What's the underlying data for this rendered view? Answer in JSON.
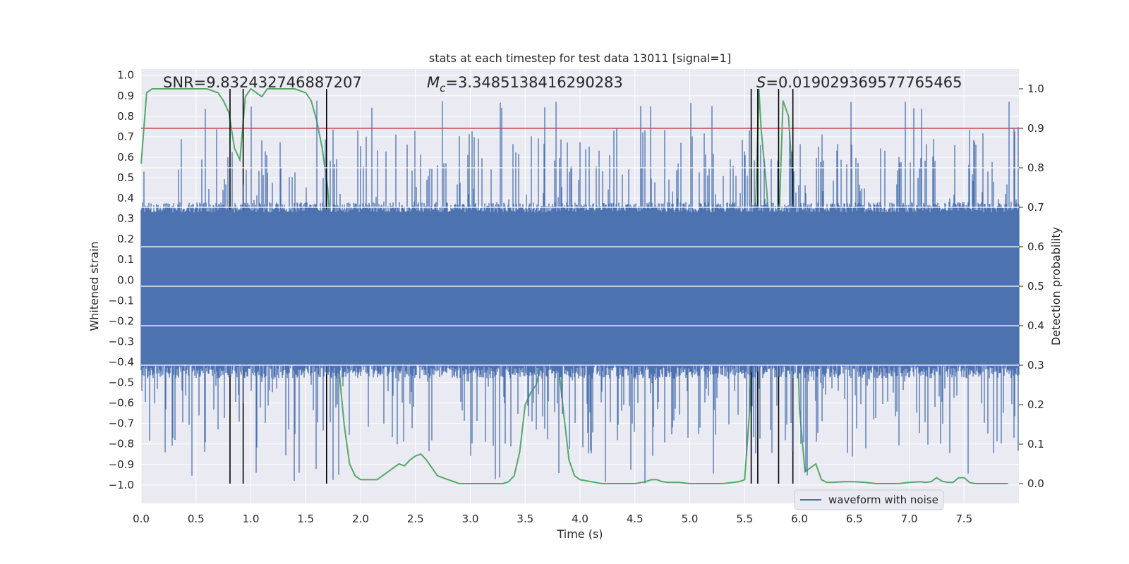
{
  "chart_data": {
    "type": "line",
    "title": "stats at each timestep for test data 13011 [signal=1]",
    "xlabel": "Time (s)",
    "ylabel": "Whitened strain",
    "ylabel_right": "Detection probability",
    "xlim": [
      0.0,
      8.0
    ],
    "ylim": [
      -1.09,
      1.03
    ],
    "ylim_right": [
      -0.05,
      1.05
    ],
    "xticks": [
      "0.0",
      "0.5",
      "1.0",
      "1.5",
      "2.0",
      "2.5",
      "3.0",
      "3.5",
      "4.0",
      "4.5",
      "5.0",
      "5.5",
      "6.0",
      "6.5",
      "7.0",
      "7.5"
    ],
    "yticks": [
      "1.0",
      "0.9",
      "0.8",
      "0.7",
      "0.6",
      "0.5",
      "0.4",
      "0.3",
      "0.2",
      "0.1",
      "0.0",
      "−0.1",
      "−0.2",
      "−0.3",
      "−0.4",
      "−0.5",
      "−0.6",
      "−0.7",
      "−0.8",
      "−0.9",
      "−1.0"
    ],
    "yticks_right": [
      "1.0",
      "0.9",
      "0.8",
      "0.7",
      "0.6",
      "0.5",
      "0.4",
      "0.3",
      "0.2",
      "0.1",
      "0.0"
    ],
    "annotations": {
      "snr": "SNR=9.832432746887207",
      "mc_prefix": "M",
      "mc_sub": "c",
      "mc_value": "=3.3485138416290283",
      "s_prefix": "S",
      "s_value": "=0.019029369577765465"
    },
    "legend": {
      "label": "waveform with noise",
      "location": "lower-right"
    },
    "threshold": {
      "value": 0.9,
      "axis": "right",
      "color": "#c44e52"
    },
    "vertical_markers_s": [
      0.81,
      0.93,
      1.69,
      5.56,
      5.62,
      5.81,
      5.94
    ],
    "waveform": {
      "name": "waveform with noise",
      "color": "#4c72b0",
      "envelope_typical": [
        -0.45,
        0.35
      ],
      "peak_range": [
        -1.0,
        0.88
      ]
    },
    "probability": {
      "name": "detection probability",
      "color": "#55a868",
      "x": [
        0.0,
        0.05,
        0.1,
        0.2,
        0.3,
        0.5,
        0.6,
        0.7,
        0.75,
        0.8,
        0.85,
        0.9,
        0.95,
        1.0,
        1.05,
        1.1,
        1.15,
        1.2,
        1.25,
        1.3,
        1.4,
        1.5,
        1.55,
        1.6,
        1.65,
        1.7,
        1.75,
        1.8,
        1.85,
        1.9,
        1.95,
        2.0,
        2.05,
        2.1,
        2.15,
        2.2,
        2.25,
        2.3,
        2.35,
        2.4,
        2.45,
        2.5,
        2.55,
        2.6,
        2.65,
        2.7,
        2.8,
        2.9,
        3.0,
        3.1,
        3.2,
        3.3,
        3.35,
        3.4,
        3.45,
        3.5,
        3.55,
        3.6,
        3.65,
        3.7,
        3.75,
        3.8,
        3.85,
        3.9,
        3.95,
        4.0,
        4.1,
        4.2,
        4.3,
        4.4,
        4.5,
        4.6,
        4.65,
        4.7,
        4.75,
        4.8,
        4.85,
        4.9,
        5.0,
        5.1,
        5.2,
        5.3,
        5.4,
        5.45,
        5.5,
        5.55,
        5.6,
        5.63,
        5.65,
        5.7,
        5.75,
        5.78,
        5.8,
        5.85,
        5.9,
        5.93,
        5.96,
        6.0,
        6.05,
        6.1,
        6.15,
        6.2,
        6.25,
        6.3,
        6.4,
        6.5,
        6.6,
        6.7,
        6.8,
        6.9,
        7.0,
        7.1,
        7.15,
        7.2,
        7.25,
        7.3,
        7.35,
        7.4,
        7.45,
        7.5,
        7.55,
        7.6,
        7.7,
        7.8,
        7.9
      ],
      "y": [
        0.81,
        0.99,
        1.0,
        1.0,
        1.0,
        1.0,
        1.0,
        0.99,
        0.97,
        0.94,
        0.85,
        0.82,
        0.98,
        1.0,
        0.99,
        0.98,
        1.0,
        1.0,
        1.0,
        1.0,
        1.0,
        0.99,
        0.97,
        0.92,
        0.85,
        0.75,
        0.55,
        0.3,
        0.15,
        0.05,
        0.02,
        0.01,
        0.01,
        0.01,
        0.01,
        0.02,
        0.03,
        0.04,
        0.05,
        0.045,
        0.06,
        0.07,
        0.075,
        0.06,
        0.04,
        0.02,
        0.01,
        0.0,
        0.0,
        0.0,
        0.0,
        0.0,
        0.005,
        0.02,
        0.08,
        0.2,
        0.23,
        0.25,
        0.31,
        0.35,
        0.35,
        0.31,
        0.18,
        0.06,
        0.02,
        0.01,
        0.005,
        0.0,
        0.0,
        0.0,
        0.0,
        0.005,
        0.01,
        0.01,
        0.005,
        0.003,
        0.003,
        0.003,
        0.0,
        0.0,
        0.0,
        0.0,
        0.003,
        0.005,
        0.01,
        0.2,
        0.7,
        1.0,
        0.9,
        0.75,
        0.55,
        0.38,
        0.55,
        0.97,
        0.93,
        0.8,
        0.6,
        0.19,
        0.03,
        0.04,
        0.05,
        0.01,
        0.003,
        0.003,
        0.005,
        0.005,
        0.003,
        0.0,
        0.0,
        0.0,
        0.003,
        0.005,
        0.003,
        0.005,
        0.015,
        0.006,
        0.003,
        0.003,
        0.015,
        0.015,
        0.003,
        0.0,
        0.0,
        0.0,
        0.0
      ]
    }
  }
}
